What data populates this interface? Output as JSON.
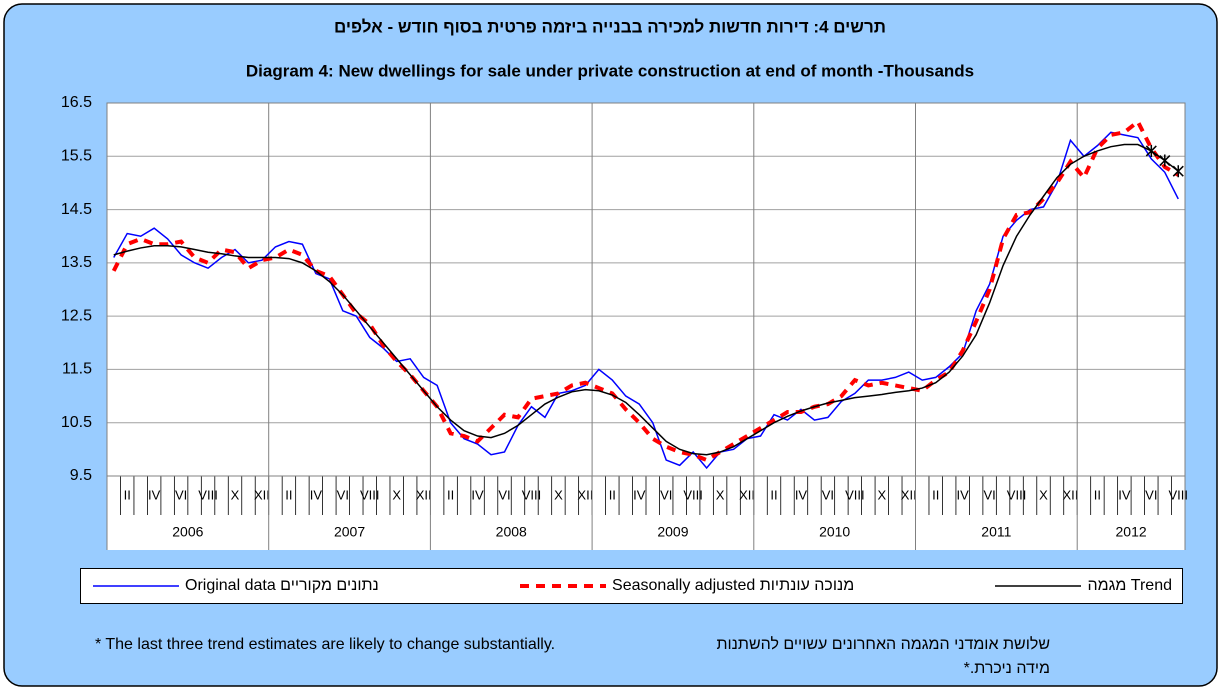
{
  "chart_data": {
    "type": "line",
    "title_he": "תרשים 4:  דירות חדשות למכירה בבנייה ביזמה פרטית בסוף חודש - אלפים",
    "title": "Diagram 4: New dwellings for sale under private construction at end of month -Thousands",
    "categories": [
      null,
      "II",
      null,
      "IV",
      null,
      "VI",
      null,
      "VIII",
      null,
      "X",
      null,
      "XII",
      null,
      "II",
      null,
      "IV",
      null,
      "VI",
      null,
      "VIII",
      null,
      "X",
      null,
      "XII",
      null,
      "II",
      null,
      "IV",
      null,
      "VI",
      null,
      "VIII",
      null,
      "X",
      null,
      "XII",
      null,
      "II",
      null,
      "IV",
      null,
      "VI",
      null,
      "VIII",
      null,
      "X",
      null,
      "XII",
      null,
      "II",
      null,
      "IV",
      null,
      "VI",
      null,
      "VIII",
      null,
      "X",
      null,
      "XII",
      null,
      "II",
      null,
      "IV",
      null,
      "VI",
      null,
      "VIII",
      null,
      "X",
      null,
      "XII",
      null,
      "II",
      null,
      "IV",
      null,
      "VI",
      null,
      "VIII"
    ],
    "years": [
      "2006",
      "2007",
      "2008",
      "2009",
      "2010",
      "2011",
      "2012"
    ],
    "series": [
      {
        "name": "נתונים מקוריים Original data",
        "color": "#0000ff",
        "dash": false,
        "values": [
          13.6,
          14.05,
          14.0,
          14.15,
          13.95,
          13.65,
          13.5,
          13.4,
          13.6,
          13.75,
          13.5,
          13.55,
          13.8,
          13.9,
          13.85,
          13.3,
          13.2,
          12.6,
          12.5,
          12.1,
          11.9,
          11.65,
          11.7,
          11.35,
          11.2,
          10.5,
          10.2,
          10.1,
          9.9,
          9.95,
          10.45,
          10.8,
          10.6,
          11.05,
          11.1,
          11.2,
          11.5,
          11.3,
          11.0,
          10.85,
          10.5,
          9.8,
          9.7,
          9.95,
          9.65,
          9.95,
          10.0,
          10.2,
          10.25,
          10.65,
          10.55,
          10.75,
          10.55,
          10.6,
          10.9,
          11.05,
          11.3,
          11.3,
          11.35,
          11.45,
          11.3,
          11.35,
          11.55,
          11.8,
          12.6,
          13.1,
          14.0,
          14.3,
          14.5,
          14.55,
          15.0,
          15.8,
          15.5,
          15.7,
          15.95,
          15.9,
          15.85,
          15.45,
          15.2,
          14.7
        ]
      },
      {
        "name": "מנוכה עונתיות  Seasonally adjusted",
        "color": "#ff0000",
        "dash": true,
        "values": [
          13.35,
          13.85,
          13.95,
          13.85,
          13.85,
          13.9,
          13.6,
          13.5,
          13.75,
          13.7,
          13.4,
          13.55,
          13.6,
          13.75,
          13.65,
          13.35,
          13.25,
          12.9,
          12.55,
          12.35,
          11.95,
          11.65,
          11.4,
          11.1,
          10.8,
          10.3,
          10.25,
          10.15,
          10.4,
          10.65,
          10.6,
          10.95,
          11.0,
          11.05,
          11.2,
          11.25,
          11.15,
          11.05,
          10.75,
          10.5,
          10.2,
          10.05,
          9.95,
          9.9,
          9.8,
          9.95,
          10.1,
          10.25,
          10.4,
          10.55,
          10.7,
          10.7,
          10.8,
          10.85,
          11.0,
          11.3,
          11.2,
          11.25,
          11.2,
          11.15,
          11.1,
          11.3,
          11.45,
          11.85,
          12.4,
          13.0,
          13.95,
          14.4,
          14.45,
          14.7,
          15.0,
          15.4,
          15.1,
          15.65,
          15.9,
          15.95,
          16.15,
          15.65,
          15.3,
          15.15
        ]
      },
      {
        "name": "Trend מגמה",
        "color": "#000000",
        "dash": false,
        "star_last": 3,
        "values": [
          13.65,
          13.72,
          13.78,
          13.82,
          13.82,
          13.8,
          13.75,
          13.7,
          13.67,
          13.63,
          13.6,
          13.6,
          13.6,
          13.58,
          13.5,
          13.35,
          13.15,
          12.9,
          12.6,
          12.3,
          12.0,
          11.7,
          11.4,
          11.1,
          10.8,
          10.55,
          10.35,
          10.25,
          10.22,
          10.3,
          10.45,
          10.65,
          10.85,
          10.98,
          11.08,
          11.12,
          11.1,
          11.02,
          10.88,
          10.65,
          10.4,
          10.15,
          10.0,
          9.92,
          9.9,
          9.95,
          10.05,
          10.2,
          10.35,
          10.5,
          10.62,
          10.72,
          10.8,
          10.87,
          10.92,
          10.97,
          11.0,
          11.03,
          11.07,
          11.1,
          11.15,
          11.25,
          11.45,
          11.75,
          12.15,
          12.75,
          13.45,
          14.0,
          14.4,
          14.75,
          15.1,
          15.35,
          15.5,
          15.6,
          15.68,
          15.72,
          15.72,
          15.6,
          15.42,
          15.22
        ]
      }
    ],
    "ylim": [
      9.5,
      16.5
    ],
    "yticks": [
      9.5,
      10.5,
      11.5,
      12.5,
      13.5,
      14.5,
      15.5,
      16.5
    ],
    "grid": true,
    "footnote_en": "* The last three  trend estimates are likely to change substantially.",
    "footnote_he": "שלושת אומדני המגמה האחרונים עשויים להשתנות מידה ניכרת.*"
  }
}
